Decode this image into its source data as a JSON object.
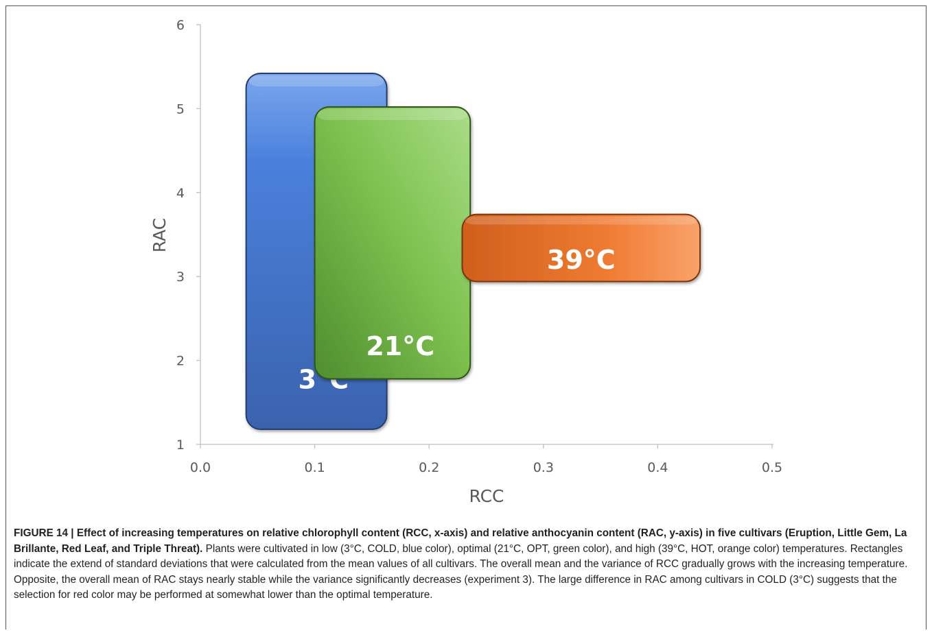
{
  "chart_data": {
    "type": "range-rectangles",
    "xlabel": "RCC",
    "ylabel": "RAC",
    "xlim": [
      0.0,
      0.5
    ],
    "ylim": [
      1,
      6
    ],
    "x_ticks": [
      "0.0",
      "0.1",
      "0.2",
      "0.3",
      "0.4",
      "0.5"
    ],
    "y_ticks": [
      "1",
      "2",
      "3",
      "4",
      "5",
      "6"
    ],
    "grid": false,
    "ranges": [
      {
        "label": "3°C",
        "x_min": 0.04,
        "x_max": 0.163,
        "y_min": 1.18,
        "y_max": 5.42,
        "color": "#4472c4"
      },
      {
        "label": "21°C",
        "x_min": 0.1,
        "x_max": 0.236,
        "y_min": 1.78,
        "y_max": 5.02,
        "color": "#70ad47"
      },
      {
        "label": "39°C",
        "x_min": 0.229,
        "x_max": 0.437,
        "y_min": 2.94,
        "y_max": 3.74,
        "color": "#ed7d31"
      }
    ]
  },
  "caption": {
    "bold": "FIGURE 14 | Effect of increasing temperatures on relative chlorophyll content (RCC, x-axis) and relative anthocyanin content (RAC, y-axis) in five cultivars (Eruption, Little Gem, La Brillante, Red Leaf, and Triple Threat).",
    "body": " Plants were cultivated in low (3°C, COLD, blue color), optimal (21°C, OPT, green color), and high (39°C, HOT, orange color) temperatures. Rectangles indicate the extend of standard deviations that were calculated from the mean values of all cultivars. The overall mean and the variance of RCC gradually grows with the increasing temperature. Opposite, the overall mean of RAC stays nearly stable while the variance significantly decreases (experiment 3). The large difference in RAC among cultivars in COLD (3°C) suggests that the selection for red color may be performed at somewhat lower than the optimal temperature."
  }
}
